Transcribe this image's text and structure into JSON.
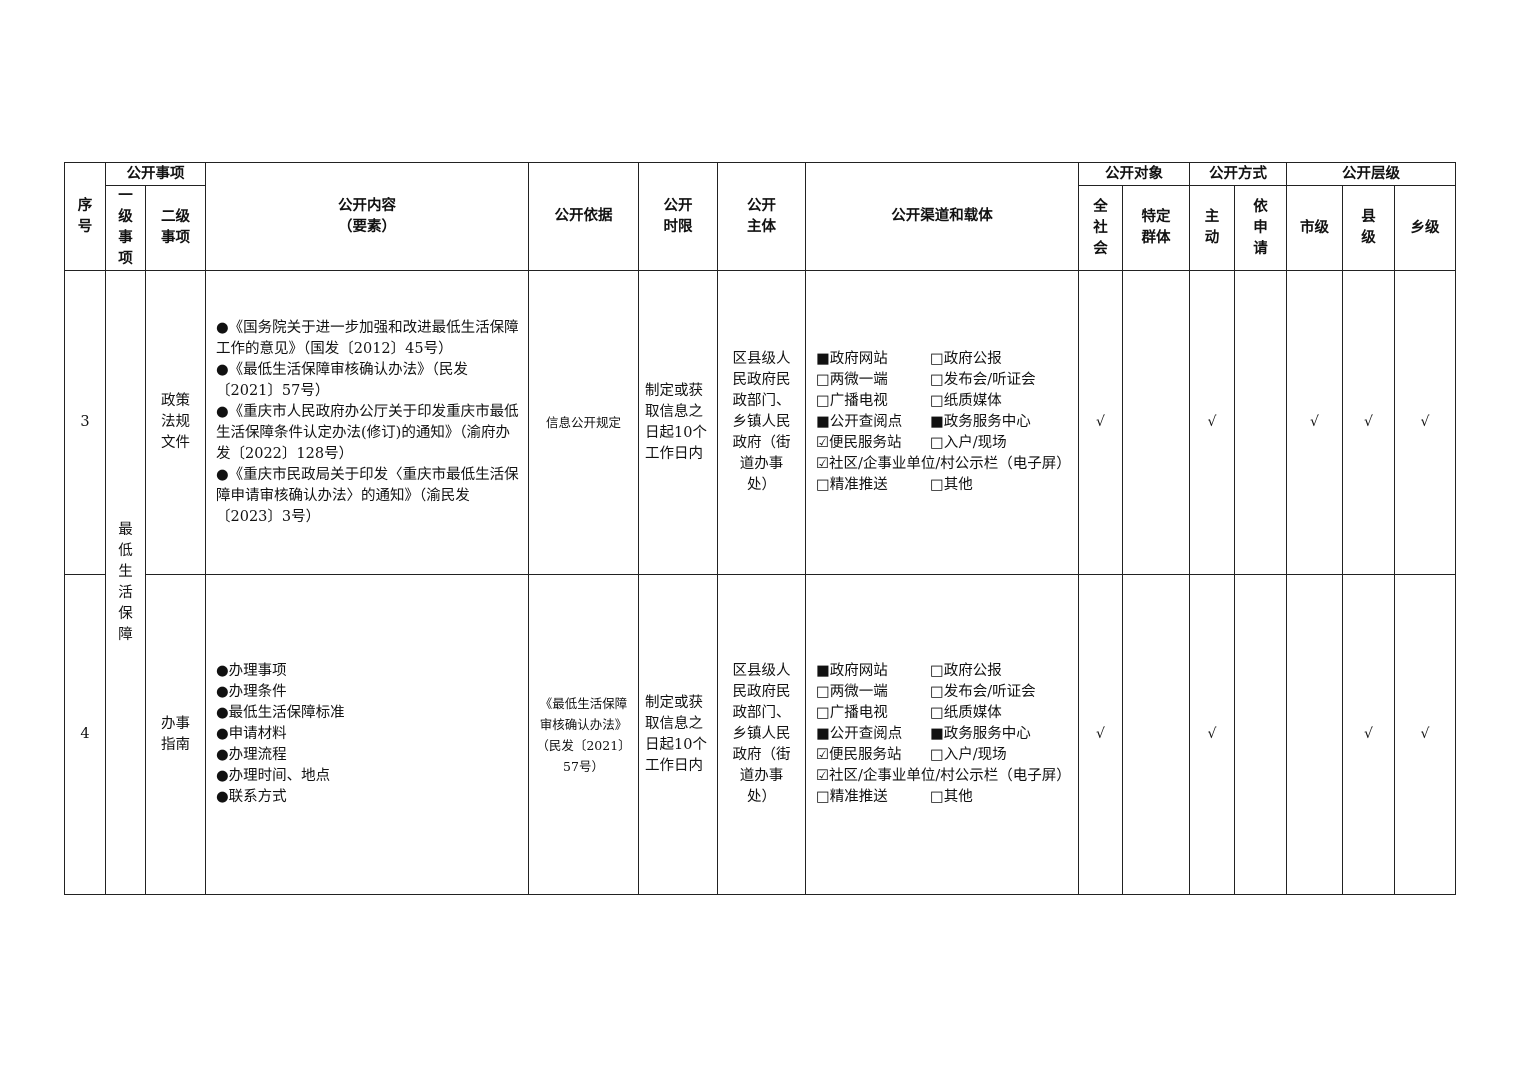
{
  "header": {
    "seq": "序号",
    "matter_group": "公开事项",
    "level1": "一级事项",
    "level2": "二级事项",
    "content": "公开内容",
    "content_sub": "（要素）",
    "basis": "公开依据",
    "time_limit": "公开时限",
    "subject": "公开主体",
    "channels": "公开渠道和载体",
    "target_group": "公开对象",
    "target_all": "全社会",
    "target_specific": "特定群体",
    "mode_group": "公开方式",
    "mode_active": "主动",
    "mode_request": "依申请",
    "level_group": "公开层级",
    "level_city": "市级",
    "level_county": "县级",
    "level_town": "乡级"
  },
  "level1_item": "最低生活保障",
  "rows": [
    {
      "seq": "3",
      "level2": "政策法规文件",
      "content": [
        "●《国务院关于进一步加强和改进最低生活保障工作的意见》（国发〔2012〕45号）",
        "●《最低生活保障审核确认办法》（民发〔2021〕57号）",
        "●《重庆市人民政府办公厅关于印发重庆市最低生活保障条件认定办法(修订)的通知》（渝府办发〔2022〕128号）",
        "●《重庆市民政局关于印发〈重庆市最低生活保障申请审核确认办法〉的通知》（渝民发〔2023〕3号）"
      ],
      "basis": "信息公开规定",
      "time_limit": "制定或获取信息之日起10个工作日内",
      "subject": "区县级人民政府民政部门、乡镇人民政府（街道办事处）",
      "channels": [
        {
          "mark": "■",
          "label": "政府网站"
        },
        {
          "mark": "□",
          "label": "政府公报"
        },
        {
          "mark": "□",
          "label": "两微一端"
        },
        {
          "mark": "□",
          "label": "发布会/听证会"
        },
        {
          "mark": "□",
          "label": "广播电视"
        },
        {
          "mark": "□",
          "label": "纸质媒体"
        },
        {
          "mark": "■",
          "label": "公开查阅点"
        },
        {
          "mark": "■",
          "label": "政务服务中心"
        },
        {
          "mark": "☑",
          "label": "便民服务站"
        },
        {
          "mark": "□",
          "label": "入户/现场"
        },
        {
          "mark": "☑",
          "label": "社区/企事业单位/村公示栏（电子屏）",
          "full": true
        },
        {
          "mark": "□",
          "label": "精准推送"
        },
        {
          "mark": "□",
          "label": "其他"
        }
      ],
      "target_all": "√",
      "target_specific": "",
      "mode_active": "√",
      "mode_request": "",
      "level_city": "√",
      "level_county": "√",
      "level_town": "√"
    },
    {
      "seq": "4",
      "level2": "办事指南",
      "content": [
        "●办理事项",
        "●办理条件",
        "●最低生活保障标准",
        "●申请材料",
        "●办理流程",
        "●办理时间、地点",
        "●联系方式"
      ],
      "basis": "《最低生活保障审核确认办法》（民发〔2021〕57号）",
      "time_limit": "制定或获取信息之日起10个工作日内",
      "subject": "区县级人民政府民政部门、乡镇人民政府（街道办事处）",
      "channels": [
        {
          "mark": "■",
          "label": "政府网站"
        },
        {
          "mark": "□",
          "label": "政府公报"
        },
        {
          "mark": "□",
          "label": "两微一端"
        },
        {
          "mark": "□",
          "label": "发布会/听证会"
        },
        {
          "mark": "□",
          "label": "广播电视"
        },
        {
          "mark": "□",
          "label": "纸质媒体"
        },
        {
          "mark": "■",
          "label": "公开查阅点"
        },
        {
          "mark": "■",
          "label": "政务服务中心"
        },
        {
          "mark": "☑",
          "label": "便民服务站"
        },
        {
          "mark": "□",
          "label": "入户/现场"
        },
        {
          "mark": "☑",
          "label": "社区/企事业单位/村公示栏（电子屏）",
          "full": true
        },
        {
          "mark": "□",
          "label": "精准推送"
        },
        {
          "mark": "□",
          "label": "其他"
        }
      ],
      "target_all": "√",
      "target_specific": "",
      "mode_active": "√",
      "mode_request": "",
      "level_city": "",
      "level_county": "√",
      "level_town": "√"
    }
  ]
}
